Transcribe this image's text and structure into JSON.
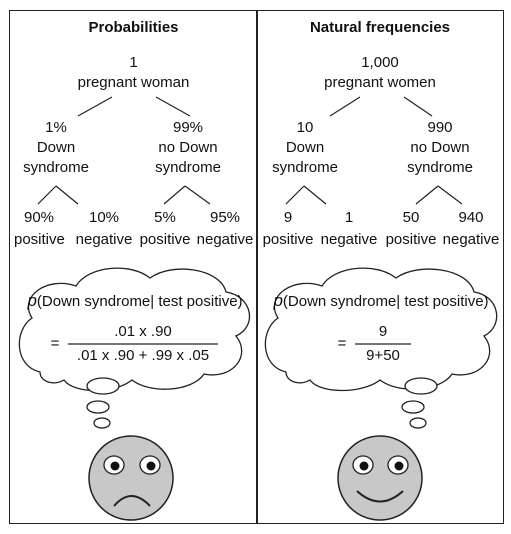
{
  "left": {
    "title": "Probabilities",
    "root": [
      "1",
      "pregnant woman"
    ],
    "branch_left": [
      "1%",
      "Down",
      "syndrome"
    ],
    "branch_right": [
      "99%",
      "no Down",
      "syndrome"
    ],
    "leaves": [
      {
        "value": "90%",
        "label": "positive"
      },
      {
        "value": "10%",
        "label": "negative"
      },
      {
        "value": "5%",
        "label": "positive"
      },
      {
        "value": "95%",
        "label": "negative"
      }
    ],
    "cloud": {
      "p": "p",
      "condition": "(Down syndrome| test positive)",
      "equals": "=",
      "numerator": ".01 x .90",
      "denominator": ".01 x .90 + .99 x .05"
    },
    "face": "sad-face"
  },
  "right": {
    "title": "Natural frequencies",
    "root": [
      "1,000",
      "pregnant women"
    ],
    "branch_left": [
      "10",
      "Down",
      "syndrome"
    ],
    "branch_right": [
      "990",
      "no Down",
      "syndrome"
    ],
    "leaves": [
      {
        "value": "9",
        "label": "positive"
      },
      {
        "value": "1",
        "label": "negative"
      },
      {
        "value": "50",
        "label": "positive"
      },
      {
        "value": "940",
        "label": "negative"
      }
    ],
    "cloud": {
      "p": "p",
      "condition": "(Down syndrome| test positive)",
      "equals": "=",
      "numerator": "9",
      "denominator": "9+50"
    },
    "face": "happy-face"
  },
  "colors": {
    "face_fill": "#c8c8c8",
    "line": "#222222"
  }
}
